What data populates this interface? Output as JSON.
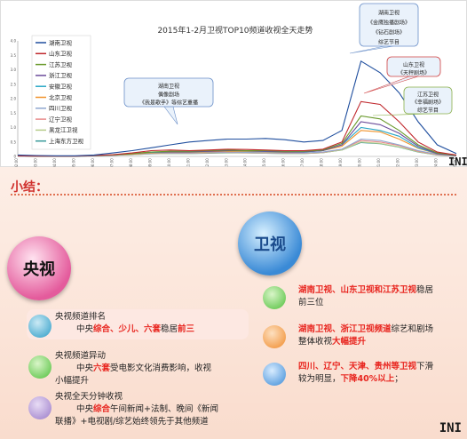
{
  "chart_data": {
    "type": "line",
    "title": "2015年1-2月卫视TOP10频道收视全天走势",
    "ylim": [
      0,
      4.0
    ],
    "yticks": [
      "4.0",
      "3.5",
      "3.0",
      "2.5",
      "2.0",
      "1.5",
      "1.0",
      "0.5",
      "0"
    ],
    "xticks": [
      "02:00",
      "03:00",
      "04:00",
      "05:00",
      "06:00",
      "07:00",
      "08:00",
      "09:00",
      "10:00",
      "11:00",
      "12:00",
      "13:00",
      "14:00",
      "15:00",
      "16:00",
      "17:00",
      "18:00",
      "19:00",
      "20:00",
      "21:00",
      "22:00",
      "23:00",
      "24:00",
      "25:00"
    ],
    "series": [
      {
        "name": "湖南卫视",
        "color": "#1f4e9e",
        "values": [
          0.05,
          0.03,
          0.02,
          0.02,
          0.05,
          0.12,
          0.2,
          0.3,
          0.4,
          0.5,
          0.55,
          0.6,
          0.6,
          0.62,
          0.58,
          0.5,
          0.55,
          0.9,
          3.3,
          2.9,
          2.2,
          1.2,
          0.4,
          0.1
        ]
      },
      {
        "name": "山东卫视",
        "color": "#c0282d",
        "values": [
          0.02,
          0.01,
          0.01,
          0.01,
          0.03,
          0.06,
          0.12,
          0.2,
          0.22,
          0.2,
          0.22,
          0.25,
          0.24,
          0.22,
          0.2,
          0.2,
          0.25,
          0.5,
          1.9,
          1.8,
          1.2,
          0.5,
          0.15,
          0.05
        ]
      },
      {
        "name": "江苏卫视",
        "color": "#6a9a2c",
        "values": [
          0.02,
          0.01,
          0.01,
          0.01,
          0.03,
          0.05,
          0.1,
          0.15,
          0.18,
          0.18,
          0.2,
          0.22,
          0.2,
          0.2,
          0.18,
          0.18,
          0.22,
          0.45,
          1.4,
          1.3,
          0.9,
          0.4,
          0.12,
          0.04
        ]
      },
      {
        "name": "浙江卫视",
        "color": "#6b4c9a",
        "values": [
          0.02,
          0.01,
          0.01,
          0.01,
          0.03,
          0.05,
          0.1,
          0.15,
          0.16,
          0.16,
          0.18,
          0.2,
          0.2,
          0.18,
          0.16,
          0.16,
          0.2,
          0.4,
          1.2,
          1.1,
          0.8,
          0.35,
          0.1,
          0.03
        ]
      },
      {
        "name": "安徽卫视",
        "color": "#2aa7c6",
        "values": [
          0.02,
          0.01,
          0.01,
          0.01,
          0.02,
          0.05,
          0.1,
          0.14,
          0.15,
          0.15,
          0.18,
          0.2,
          0.19,
          0.17,
          0.15,
          0.15,
          0.2,
          0.4,
          1.0,
          0.9,
          0.7,
          0.3,
          0.1,
          0.03
        ]
      },
      {
        "name": "北京卫视",
        "color": "#f0922b",
        "values": [
          0.02,
          0.01,
          0.01,
          0.01,
          0.02,
          0.05,
          0.08,
          0.12,
          0.14,
          0.14,
          0.16,
          0.18,
          0.17,
          0.16,
          0.14,
          0.15,
          0.2,
          0.35,
          0.9,
          0.85,
          0.6,
          0.28,
          0.09,
          0.03
        ]
      },
      {
        "name": "四川卫视",
        "color": "#8fa7cf",
        "values": [
          0.01,
          0.01,
          0.01,
          0.01,
          0.02,
          0.04,
          0.07,
          0.1,
          0.12,
          0.12,
          0.14,
          0.15,
          0.14,
          0.13,
          0.12,
          0.12,
          0.15,
          0.25,
          0.6,
          0.55,
          0.4,
          0.2,
          0.07,
          0.02
        ]
      },
      {
        "name": "辽宁卫视",
        "color": "#e88a8a",
        "values": [
          0.01,
          0.01,
          0.01,
          0.01,
          0.02,
          0.04,
          0.07,
          0.1,
          0.11,
          0.11,
          0.13,
          0.14,
          0.13,
          0.12,
          0.11,
          0.11,
          0.14,
          0.25,
          0.55,
          0.5,
          0.38,
          0.18,
          0.06,
          0.02
        ]
      },
      {
        "name": "黑龙江卫视",
        "color": "#b7cc8a",
        "values": [
          0.01,
          0.01,
          0.01,
          0.01,
          0.02,
          0.04,
          0.06,
          0.09,
          0.1,
          0.1,
          0.12,
          0.13,
          0.12,
          0.11,
          0.1,
          0.1,
          0.13,
          0.22,
          0.5,
          0.45,
          0.33,
          0.16,
          0.05,
          0.02
        ]
      },
      {
        "name": "上海东方卫视",
        "color": "#3a9a9a",
        "values": [
          0.01,
          0.01,
          0.01,
          0.01,
          0.02,
          0.04,
          0.06,
          0.09,
          0.1,
          0.1,
          0.11,
          0.12,
          0.12,
          0.11,
          0.1,
          0.1,
          0.13,
          0.22,
          0.48,
          0.44,
          0.32,
          0.15,
          0.05,
          0.02
        ]
      }
    ],
    "annotations": [
      {
        "lines": [
          "湖南卫视",
          "偶像剧场",
          "《我是歌手》等综艺重播"
        ],
        "border": "#6a8fc8"
      },
      {
        "lines": [
          "湖南卫视",
          "《金鹰独播剧场》",
          "《钻石剧场》",
          "综艺节目"
        ],
        "border": "#6a8fc8"
      },
      {
        "lines": [
          "山东卫视",
          "《天秤剧场》"
        ],
        "border": "#d04040"
      },
      {
        "lines": [
          "江苏卫视",
          "《幸福剧场》",
          "综艺节目"
        ],
        "border": "#8ab04a"
      }
    ],
    "grid": false,
    "legend": "top-left"
  },
  "summary": {
    "heading": "小结：",
    "cctv": {
      "label": "央视",
      "items": [
        {
          "line1": "央视频道排名",
          "line2_parts": [
            {
              "t": "中央",
              "r": false
            },
            {
              "t": "综合、少儿、六套",
              "r": true
            },
            {
              "t": "稳居",
              "r": false
            },
            {
              "t": "前三",
              "r": true
            }
          ]
        },
        {
          "line1": "央视频道异动",
          "line2_parts": [
            {
              "t": "中央",
              "r": false
            },
            {
              "t": "六套",
              "r": true
            },
            {
              "t": "受电影文化消费影响，收视",
              "r": false
            }
          ],
          "line3": "小幅提升"
        },
        {
          "line1": "央视全天分钟收视",
          "line2_parts": [
            {
              "t": "中央",
              "r": false
            },
            {
              "t": "综合",
              "r": true
            },
            {
              "t": "午间新闻+法制、晚间《新闻",
              "r": false
            }
          ],
          "line3": "联播》+电视剧/综艺始终领先于其他频道"
        }
      ]
    },
    "satellite": {
      "label": "卫视",
      "items": [
        {
          "parts": [
            {
              "t": "湖南卫视、山东卫视和江苏卫视",
              "r": true
            },
            {
              "t": "稳居",
              "r": false
            }
          ],
          "line2": "前三位"
        },
        {
          "parts": [
            {
              "t": "湖南卫视、浙江卫视频道",
              "r": true
            },
            {
              "t": "综艺和剧场",
              "r": false
            }
          ],
          "line2_parts": [
            {
              "t": "整体收视",
              "r": false
            },
            {
              "t": "大幅提升",
              "r": true
            }
          ]
        },
        {
          "parts": [
            {
              "t": "四川、辽宁、天津、贵州等卫视",
              "r": true
            },
            {
              "t": "下滑",
              "r": false
            }
          ],
          "line2_parts": [
            {
              "t": "较为明显，",
              "r": false
            },
            {
              "t": "下降40%以上",
              "r": true
            },
            {
              "t": "；",
              "r": false
            }
          ]
        }
      ]
    },
    "watermark": "INI"
  }
}
